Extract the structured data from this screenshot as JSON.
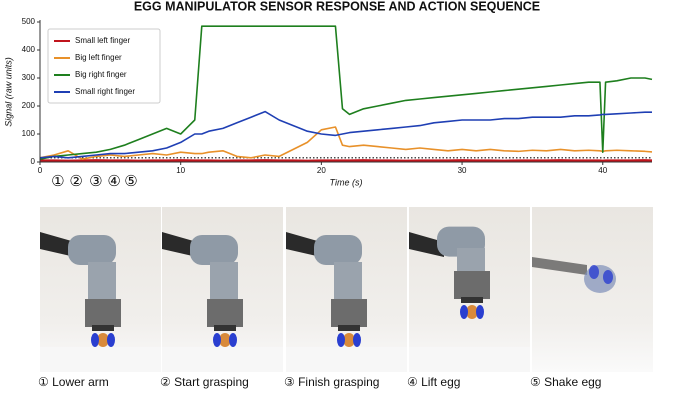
{
  "chart_data": {
    "type": "line",
    "title": "EGG MANIPULATOR SENSOR RESPONSE AND ACTION SEQUENCE",
    "x_label": "Time (s)",
    "y_label": "Signal (raw units)",
    "xlim": [
      0,
      43.5
    ],
    "ylim": [
      0,
      500
    ],
    "xticks": [
      0,
      10,
      20,
      30,
      40
    ],
    "yticks": [
      0,
      100,
      200,
      300,
      400,
      500
    ],
    "legend": "upper left",
    "grid": false,
    "reference_line": 15,
    "x": [
      0,
      1,
      2,
      3,
      4,
      5,
      6,
      7,
      8,
      9,
      10,
      11,
      11.5,
      12,
      13,
      14,
      15,
      16,
      17,
      18,
      19,
      20,
      21,
      21.5,
      22,
      23,
      24,
      25,
      26,
      27,
      28,
      29,
      30,
      31,
      32,
      33,
      34,
      35,
      36,
      37,
      38,
      39,
      39.8,
      40,
      40.2,
      41,
      42,
      43,
      43.5
    ],
    "series": [
      {
        "name": "Small left finger",
        "color": "#c0141c",
        "values": [
          5,
          5,
          4,
          5,
          6,
          5,
          5,
          4,
          5,
          5,
          6,
          5,
          5,
          5,
          4,
          5,
          5,
          6,
          5,
          5,
          4,
          5,
          5,
          5,
          5,
          6,
          5,
          5,
          4,
          5,
          5,
          5,
          6,
          5,
          5,
          4,
          5,
          5,
          5,
          6,
          5,
          5,
          5,
          4,
          5,
          5,
          5,
          6,
          5
        ]
      },
      {
        "name": "Big left finger",
        "color": "#e8912a",
        "values": [
          15,
          25,
          40,
          10,
          20,
          25,
          20,
          25,
          30,
          25,
          35,
          30,
          30,
          35,
          40,
          20,
          15,
          25,
          20,
          45,
          70,
          115,
          125,
          60,
          55,
          60,
          55,
          50,
          45,
          50,
          45,
          40,
          45,
          40,
          45,
          40,
          38,
          42,
          40,
          45,
          40,
          42,
          40,
          38,
          40,
          42,
          40,
          38,
          36
        ]
      },
      {
        "name": "Big right finger",
        "color": "#1e7f1e",
        "values": [
          10,
          20,
          25,
          30,
          35,
          45,
          60,
          80,
          100,
          120,
          100,
          150,
          485,
          485,
          485,
          485,
          485,
          485,
          485,
          485,
          485,
          485,
          485,
          190,
          170,
          190,
          200,
          210,
          220,
          225,
          230,
          235,
          240,
          245,
          250,
          255,
          260,
          265,
          270,
          275,
          280,
          285,
          285,
          35,
          285,
          290,
          300,
          300,
          295
        ]
      },
      {
        "name": "Small right finger",
        "color": "#1f3fb4",
        "values": [
          15,
          20,
          15,
          20,
          25,
          30,
          30,
          35,
          40,
          50,
          70,
          100,
          100,
          110,
          120,
          140,
          160,
          180,
          150,
          130,
          110,
          100,
          95,
          100,
          105,
          110,
          115,
          120,
          125,
          130,
          140,
          145,
          150,
          150,
          150,
          155,
          155,
          160,
          160,
          160,
          165,
          165,
          168,
          170,
          170,
          172,
          175,
          178,
          178
        ]
      }
    ],
    "annotations": [
      {
        "text": "①",
        "x": 0.7
      },
      {
        "text": "②",
        "x": 2
      },
      {
        "text": "③",
        "x": 3.4
      },
      {
        "text": "④",
        "x": 4.7
      },
      {
        "text": "⑤",
        "x": 5.9
      }
    ],
    "panels": [
      {
        "caption": "① Lower arm"
      },
      {
        "caption": "② Start grasping"
      },
      {
        "caption": "③ Finish grasping"
      },
      {
        "caption": "④ Lift egg"
      },
      {
        "caption": "⑤ Shake egg"
      }
    ]
  }
}
